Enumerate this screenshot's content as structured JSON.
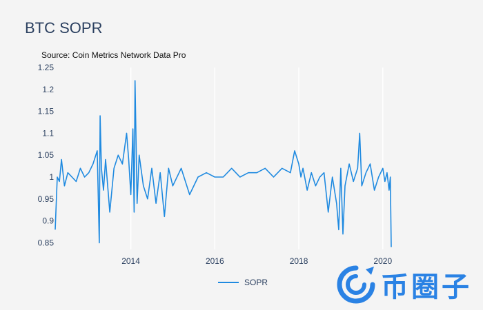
{
  "title": "BTC SOPR",
  "subtitle": "Source: Coin Metrics Network Data Pro",
  "legend": {
    "series_label": "SOPR",
    "color": "#1f8ae0"
  },
  "watermark": {
    "text": "币圈子",
    "color": "#2a82e4"
  },
  "chart_data": {
    "type": "line",
    "title": "BTC SOPR",
    "subtitle": "Source: Coin Metrics Network Data Pro",
    "xlabel": "",
    "ylabel": "",
    "xlim": [
      2012.2,
      2021.4
    ],
    "ylim": [
      0.835,
      1.25
    ],
    "x_ticks": [
      2014,
      2016,
      2018,
      2020
    ],
    "y_ticks": [
      0.85,
      0.9,
      0.95,
      1,
      1.05,
      1.1,
      1.15,
      1.2,
      1.25
    ],
    "grid": {
      "x": true,
      "y": false
    },
    "legend_position": "bottom-center",
    "series": [
      {
        "name": "SOPR",
        "color": "#1f8ae0",
        "x": [
          2012.2,
          2012.25,
          2012.3,
          2012.35,
          2012.42,
          2012.5,
          2012.6,
          2012.7,
          2012.8,
          2012.9,
          2013.0,
          2013.1,
          2013.2,
          2013.25,
          2013.27,
          2013.3,
          2013.35,
          2013.4,
          2013.5,
          2013.6,
          2013.7,
          2013.8,
          2013.9,
          2013.95,
          2014.0,
          2014.05,
          2014.08,
          2014.1,
          2014.15,
          2014.2,
          2014.3,
          2014.4,
          2014.5,
          2014.6,
          2014.7,
          2014.8,
          2014.9,
          2015.0,
          2015.2,
          2015.4,
          2015.6,
          2015.8,
          2016.0,
          2016.2,
          2016.4,
          2016.6,
          2016.8,
          2017.0,
          2017.2,
          2017.4,
          2017.6,
          2017.8,
          2017.9,
          2018.0,
          2018.05,
          2018.1,
          2018.2,
          2018.3,
          2018.4,
          2018.5,
          2018.6,
          2018.7,
          2018.8,
          2018.9,
          2018.95,
          2019.0,
          2019.05,
          2019.1,
          2019.2,
          2019.3,
          2019.4,
          2019.45,
          2019.5,
          2019.6,
          2019.7,
          2019.8,
          2019.9,
          2020.0,
          2020.05,
          2020.1,
          2020.15,
          2020.18,
          2020.2
        ],
        "values": [
          0.88,
          1.0,
          0.99,
          1.04,
          0.98,
          1.01,
          1.0,
          0.99,
          1.02,
          1.0,
          1.01,
          1.03,
          1.06,
          0.85,
          1.14,
          1.02,
          0.97,
          1.04,
          0.92,
          1.02,
          1.05,
          1.03,
          1.1,
          1.04,
          0.96,
          1.11,
          0.92,
          1.22,
          0.94,
          1.05,
          0.98,
          0.95,
          1.02,
          0.94,
          1.01,
          0.91,
          1.02,
          0.98,
          1.02,
          0.96,
          1.0,
          1.01,
          1.0,
          1.0,
          1.02,
          1.0,
          1.01,
          1.01,
          1.02,
          1.0,
          1.02,
          1.01,
          1.06,
          1.03,
          1.0,
          1.02,
          0.97,
          1.01,
          0.98,
          1.0,
          1.01,
          0.92,
          1.0,
          0.94,
          0.88,
          1.02,
          0.87,
          0.98,
          1.03,
          0.99,
          1.02,
          1.1,
          0.98,
          1.01,
          1.03,
          0.97,
          1.0,
          1.02,
          0.99,
          1.01,
          0.97,
          1.0,
          0.84
        ]
      }
    ]
  }
}
